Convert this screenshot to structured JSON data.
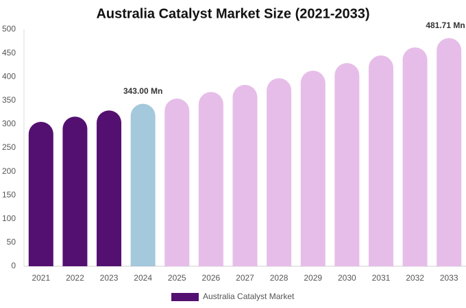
{
  "chart_data": {
    "type": "bar",
    "title": "Australia Catalyst Market Size (2021-2033)",
    "categories": [
      "2021",
      "2022",
      "2023",
      "2024",
      "2025",
      "2026",
      "2027",
      "2028",
      "2029",
      "2030",
      "2031",
      "2032",
      "2033"
    ],
    "series": [
      {
        "name": "Australia Catalyst Market",
        "color": "#541070",
        "values": [
          305,
          316,
          329,
          343.0,
          354,
          368,
          383,
          397,
          413,
          429,
          445,
          462,
          481.71
        ],
        "value_labels": [
          null,
          null,
          null,
          "343.00 Mn",
          null,
          null,
          null,
          null,
          null,
          null,
          null,
          null,
          "481.71 Mn"
        ],
        "colors": [
          "#541070",
          "#541070",
          "#541070",
          "#a4c8dc",
          "#e6bde8",
          "#e6bde8",
          "#e6bde8",
          "#e6bde8",
          "#e6bde8",
          "#e6bde8",
          "#e6bde8",
          "#e6bde8",
          "#e6bde8"
        ]
      }
    ],
    "ylim": [
      0,
      500
    ],
    "yticks": [
      0,
      50,
      100,
      150,
      200,
      250,
      300,
      350,
      400,
      450,
      500
    ],
    "grid": false,
    "legend": "bottom"
  }
}
